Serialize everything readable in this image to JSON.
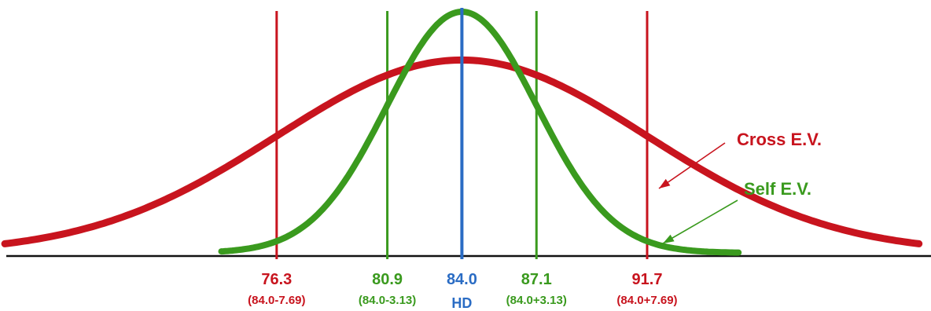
{
  "colors": {
    "cross": "#c8141e",
    "self": "#3a9a1e",
    "hd": "#2a6cc4",
    "baseline": "#111111"
  },
  "chart_data": {
    "type": "line",
    "title": "",
    "xlabel": "",
    "ylabel": "",
    "xlim": [
      64.8,
      103.5
    ],
    "center": {
      "value": "84.0",
      "label": "HD",
      "x": 84.0
    },
    "series": [
      {
        "name": "Cross E.V.",
        "mean": 84.0,
        "sd": 7.69,
        "peak": 0.8,
        "x_range": [
          65.0,
          103.0
        ]
      },
      {
        "name": "Self E.V.",
        "mean": 84.0,
        "sd": 3.13,
        "peak": 1.0,
        "x_range": [
          74.0,
          95.5
        ]
      }
    ],
    "markers": [
      {
        "series": "Cross E.V.",
        "x": 76.3,
        "value": "76.3",
        "formula": "(84.0-7.69)"
      },
      {
        "series": "Self E.V.",
        "x": 80.9,
        "value": "80.9",
        "formula": "(84.0-3.13)"
      },
      {
        "series": "Self E.V.",
        "x": 87.1,
        "value": "87.1",
        "formula": "(84.0+3.13)"
      },
      {
        "series": "Cross E.V.",
        "x": 91.7,
        "value": "91.7",
        "formula": "(84.0+7.69)"
      }
    ],
    "legend": [
      {
        "series": "Cross E.V.",
        "label": "Cross E.V."
      },
      {
        "series": "Self E.V.",
        "label": "Self E.V."
      }
    ]
  }
}
